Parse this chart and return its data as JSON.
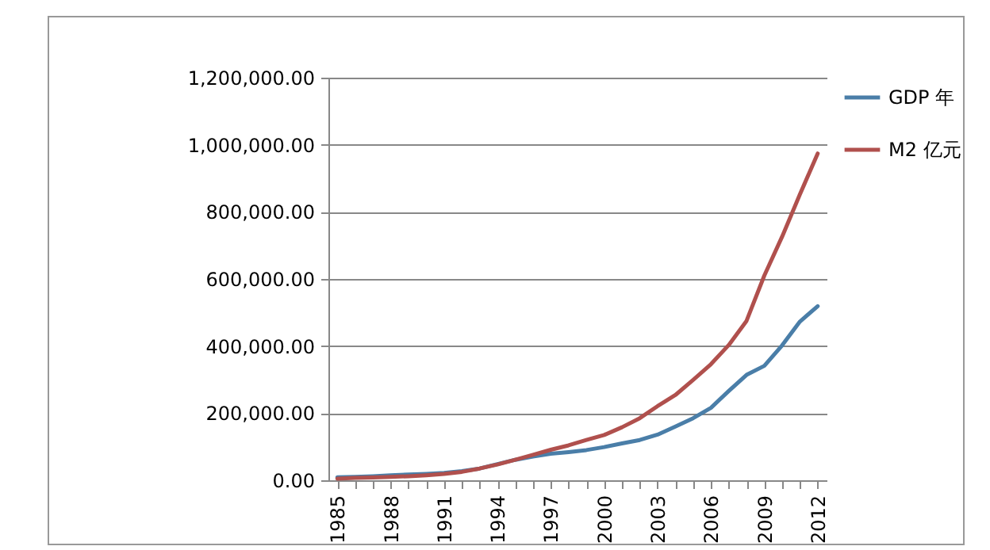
{
  "chart_data": {
    "type": "line",
    "categories": [
      "1985",
      null,
      null,
      "1988",
      null,
      null,
      "1991",
      null,
      null,
      "1994",
      null,
      null,
      "1997",
      null,
      null,
      "2000",
      null,
      null,
      "2003",
      null,
      null,
      "2006",
      null,
      null,
      "2009",
      null,
      null,
      "2012"
    ],
    "series": [
      {
        "name": "GDP 年",
        "color": "#4a7ea8",
        "values": [
          9000,
          10000,
          12000,
          15000,
          17000,
          19000,
          22000,
          27000,
          35000,
          48000,
          61000,
          71000,
          79000,
          84000,
          90000,
          99000,
          110000,
          120000,
          136000,
          160000,
          185000,
          216000,
          266000,
          314000,
          341000,
          402000,
          473000,
          519000
        ]
      },
      {
        "name": "M2 亿元",
        "color": "#b0504d",
        "values": [
          5000,
          7000,
          8000,
          10000,
          12000,
          15000,
          19000,
          25000,
          35000,
          47000,
          61000,
          76000,
          91000,
          104000,
          120000,
          135000,
          158000,
          185000,
          221000,
          254000,
          299000,
          346000,
          403000,
          475000,
          610000,
          726000,
          852000,
          974000
        ]
      }
    ],
    "ylim": [
      0,
      1200000
    ],
    "yticks": [
      {
        "value": 0,
        "label": "0.00"
      },
      {
        "value": 200000,
        "label": "200,000.00"
      },
      {
        "value": 400000,
        "label": "400,000.00"
      },
      {
        "value": 600000,
        "label": "600,000.00"
      },
      {
        "value": 800000,
        "label": "800,000.00"
      },
      {
        "value": 1000000,
        "label": "1,000,000.00"
      },
      {
        "value": 1200000,
        "label": "1,200,000.00"
      }
    ],
    "grid": "y",
    "legend": "right"
  }
}
